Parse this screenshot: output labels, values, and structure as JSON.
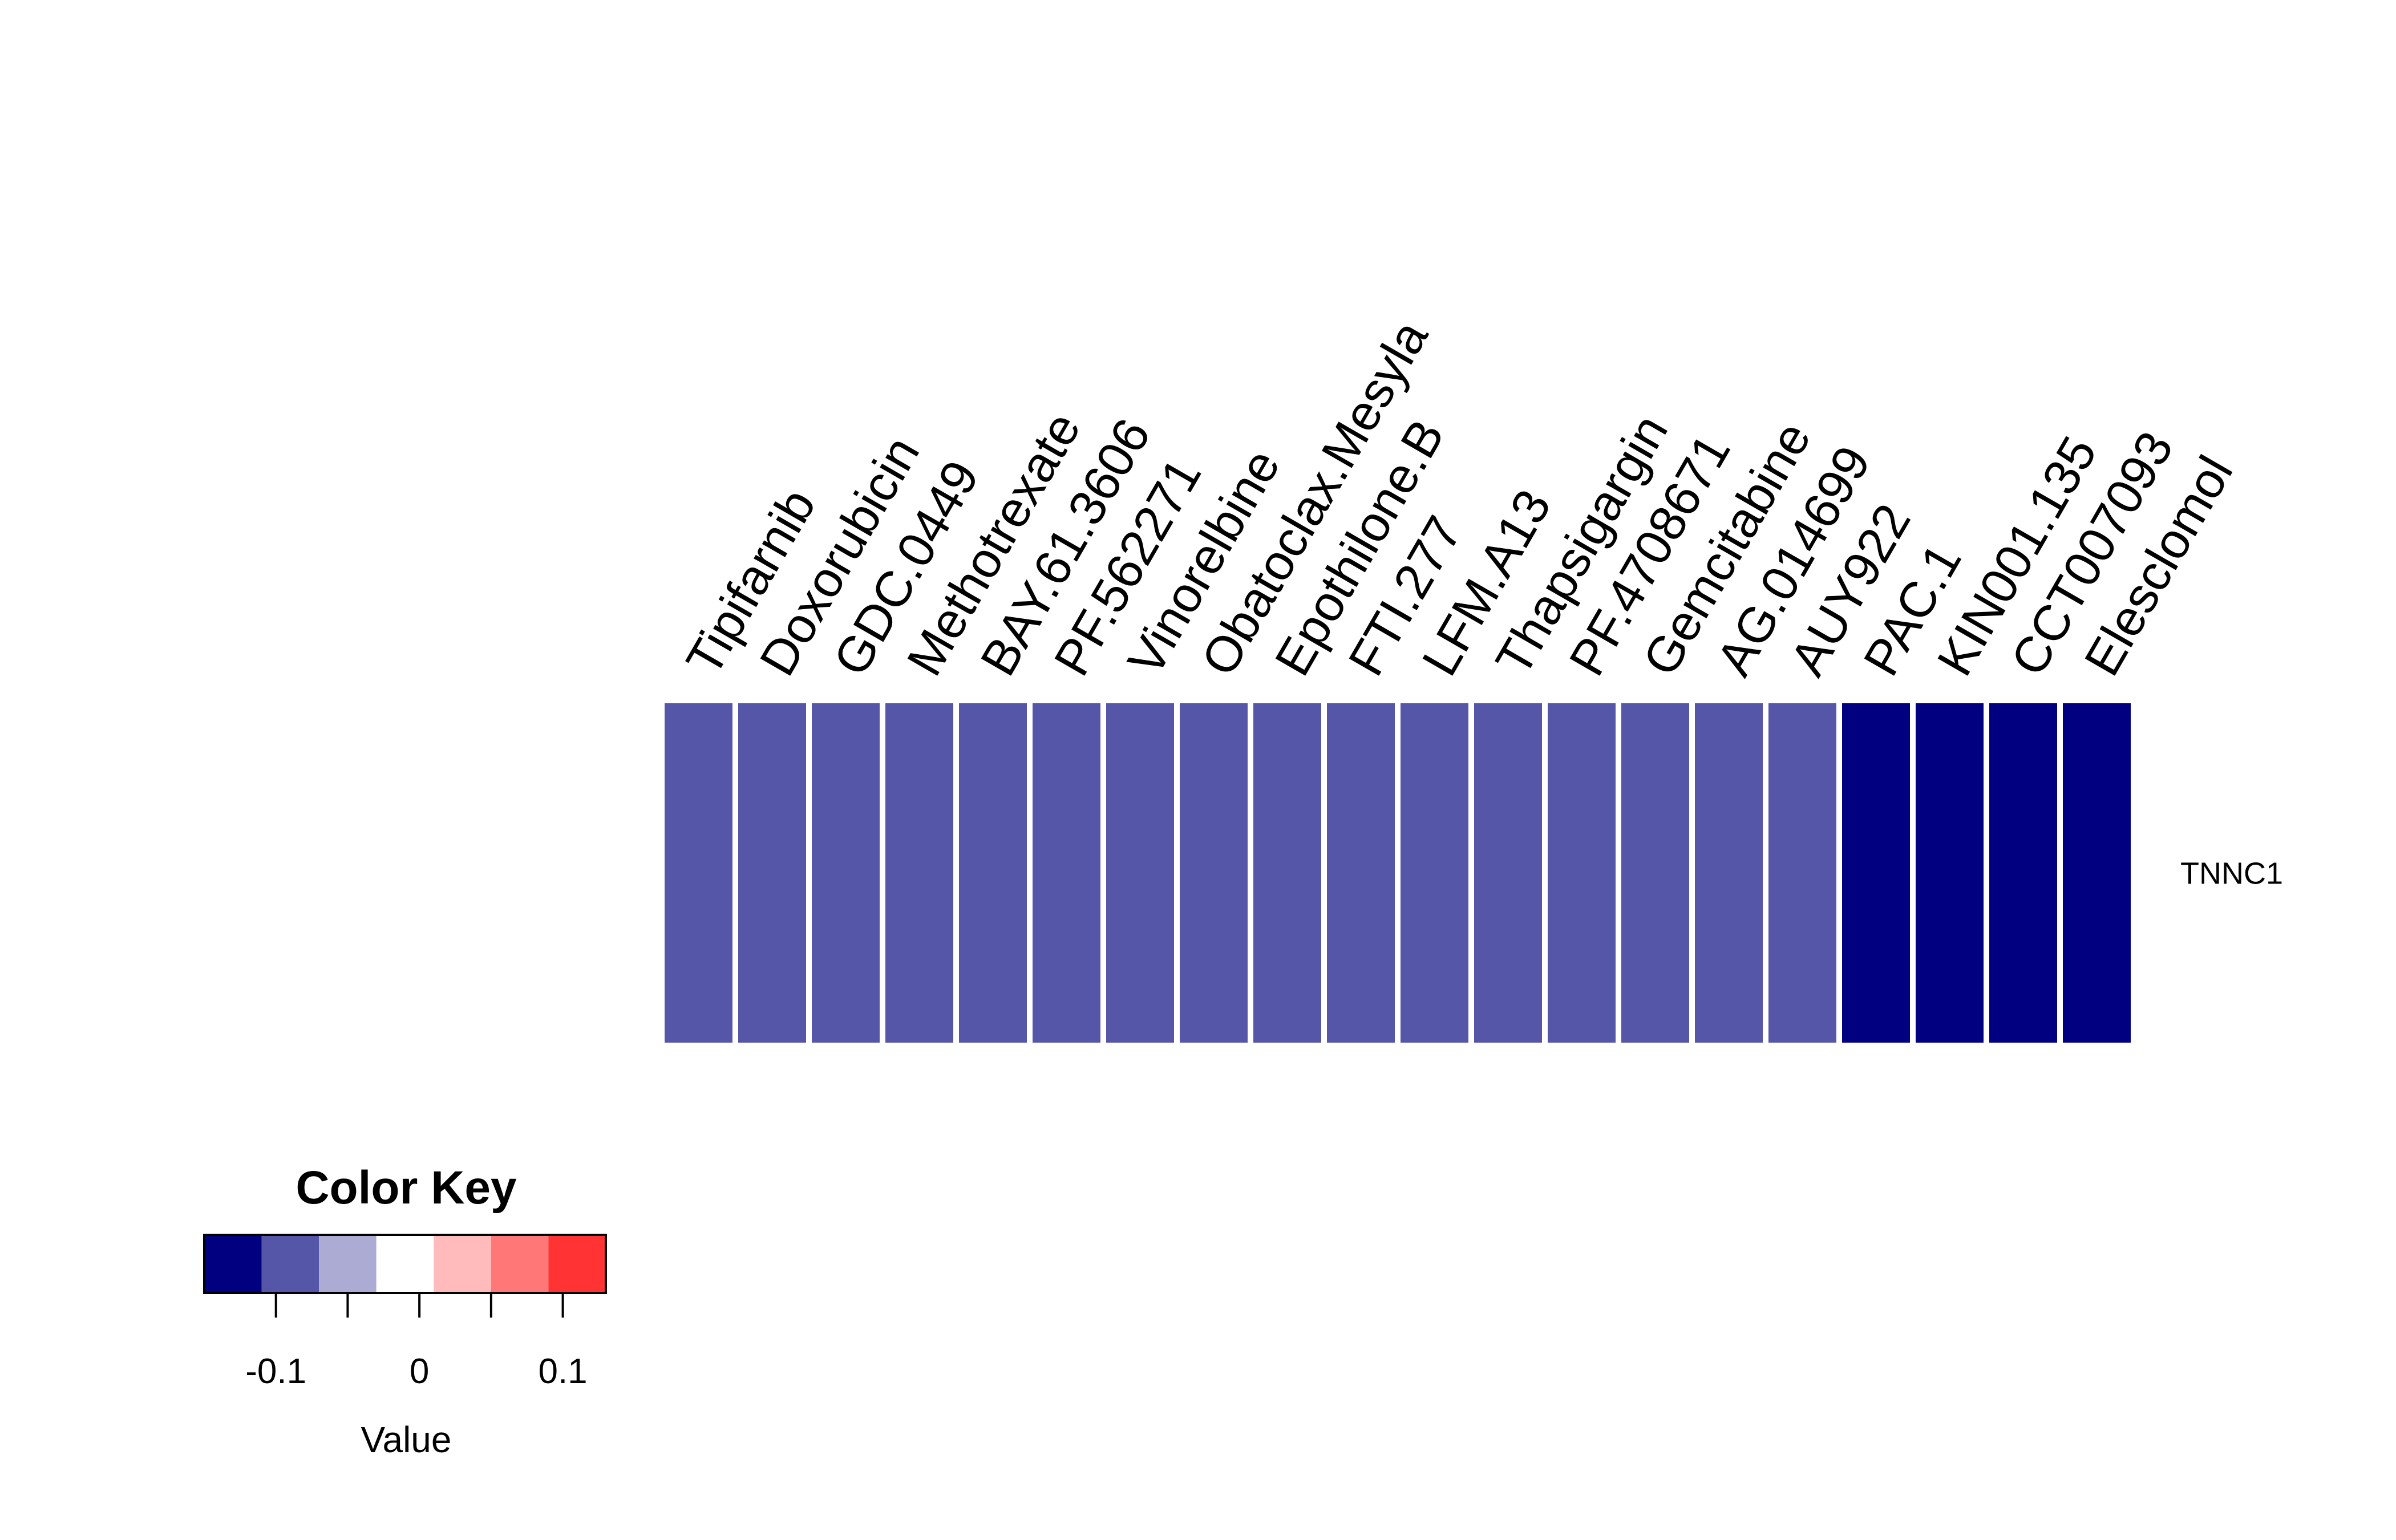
{
  "chart_data": {
    "type": "heatmap",
    "columns": [
      "Tipifarnib",
      "Doxorubicin",
      "GDC.0449",
      "Methotrexate",
      "BAY.61.3606",
      "PF.562271",
      "Vinorelbine",
      "Obatoclax.Mesyla",
      "Epothilone.B",
      "FTI.277",
      "LFM.A13",
      "Thapsigargin",
      "PF.4708671",
      "Gemcitabine",
      "AG.014699",
      "AUY922",
      "PAC.1",
      "KIN001.135",
      "CCT007093",
      "Elesclomol"
    ],
    "rows": [
      "TNNC1"
    ],
    "values": [
      [
        -0.09,
        -0.09,
        -0.09,
        -0.09,
        -0.09,
        -0.09,
        -0.09,
        -0.09,
        -0.09,
        -0.09,
        -0.09,
        -0.09,
        -0.09,
        -0.09,
        -0.09,
        -0.09,
        -0.13,
        -0.13,
        -0.13,
        -0.13
      ]
    ],
    "color_key": {
      "title": "Color Key",
      "xlabel": "Value",
      "breaks": [
        -0.15,
        -0.11,
        -0.07,
        -0.03,
        0.01,
        0.05,
        0.09,
        0.13
      ],
      "colors": [
        "#000080",
        "#5656a9",
        "#ababd4",
        "#ffffff",
        "#ffbbbb",
        "#ff7777",
        "#ff3333"
      ],
      "tick_values": [
        -0.1,
        -0.05,
        0,
        0.05,
        0.1
      ],
      "tick_labels": [
        "-0.1",
        "",
        "0",
        "",
        "0.1"
      ]
    }
  }
}
